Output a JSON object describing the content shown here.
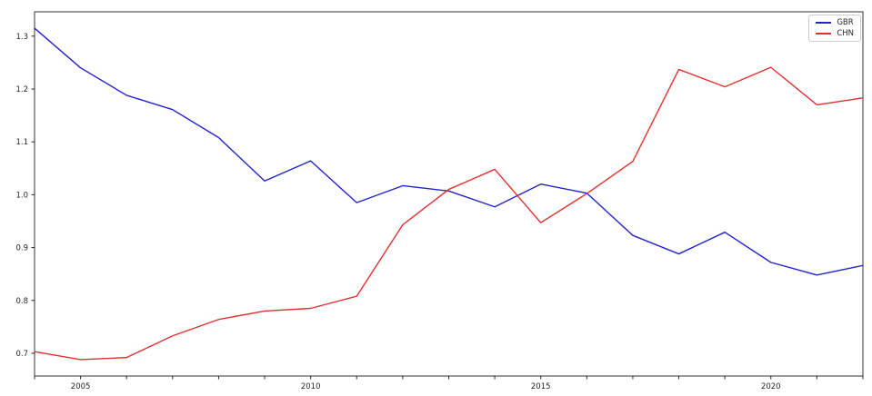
{
  "chart_data": {
    "type": "line",
    "x": [
      2004,
      2005,
      2006,
      2007,
      2008,
      2009,
      2010,
      2011,
      2012,
      2013,
      2014,
      2015,
      2016,
      2017,
      2018,
      2019,
      2020,
      2021,
      2022
    ],
    "series": [
      {
        "name": "GBR",
        "color": "#2323cc",
        "values": [
          1.315,
          1.24,
          1.188,
          1.161,
          1.108,
          1.026,
          1.064,
          0.985,
          1.017,
          1.007,
          0.977,
          1.02,
          1.003,
          0.923,
          0.888,
          0.929,
          0.872,
          0.848,
          0.866
        ]
      },
      {
        "name": "CHN",
        "color": "#e03030",
        "values": [
          0.703,
          0.688,
          0.692,
          0.733,
          0.764,
          0.78,
          0.785,
          0.808,
          0.943,
          1.01,
          1.048,
          0.947,
          1.002,
          1.063,
          1.237,
          1.204,
          1.241,
          1.17,
          1.183
        ]
      }
    ],
    "xlim": [
      2004,
      2022
    ],
    "ylim": [
      0.657,
      1.346
    ],
    "xticks_labeled": [
      2005,
      2010,
      2015,
      2020
    ],
    "xticks_minor_every": 1,
    "yticks": [
      0.7,
      0.8,
      0.9,
      1.0,
      1.1,
      1.2,
      1.3
    ],
    "grid": false,
    "legend_position": "upper right",
    "frame_color": "#333333",
    "tick_color": "#262626"
  },
  "legend": {
    "items": [
      {
        "label": "GBR",
        "color": "#2323cc"
      },
      {
        "label": "CHN",
        "color": "#e03030"
      }
    ]
  }
}
